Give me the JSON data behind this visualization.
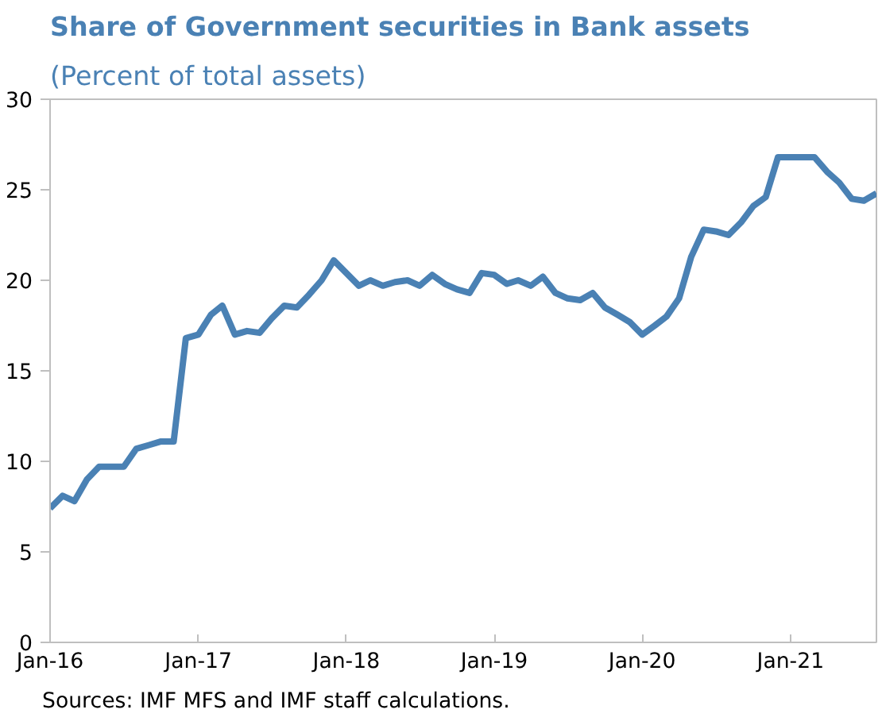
{
  "chart_data": {
    "type": "line",
    "title": "Share of Government securities in Bank assets",
    "subtitle": "(Percent of total assets)",
    "x": [
      "2016-01",
      "2016-02",
      "2016-03",
      "2016-04",
      "2016-05",
      "2016-06",
      "2016-07",
      "2016-08",
      "2016-09",
      "2016-10",
      "2016-11",
      "2016-12",
      "2017-01",
      "2017-02",
      "2017-03",
      "2017-04",
      "2017-05",
      "2017-06",
      "2017-07",
      "2017-08",
      "2017-09",
      "2017-10",
      "2017-11",
      "2017-12",
      "2018-01",
      "2018-02",
      "2018-03",
      "2018-04",
      "2018-05",
      "2018-06",
      "2018-07",
      "2018-08",
      "2018-09",
      "2018-10",
      "2018-11",
      "2018-12",
      "2019-01",
      "2019-02",
      "2019-03",
      "2019-04",
      "2019-05",
      "2019-06",
      "2019-07",
      "2019-08",
      "2019-09",
      "2019-10",
      "2019-11",
      "2019-12",
      "2020-01",
      "2020-02",
      "2020-03",
      "2020-04",
      "2020-05",
      "2020-06",
      "2020-07",
      "2020-08",
      "2020-09",
      "2020-10",
      "2020-11",
      "2020-12",
      "2021-01",
      "2021-02",
      "2021-03",
      "2021-04",
      "2021-05",
      "2021-06",
      "2021-07",
      "2021-08"
    ],
    "series": [
      {
        "color": "#4a81b4",
        "values": [
          7.4,
          8.1,
          7.8,
          9.0,
          9.7,
          9.7,
          9.7,
          10.7,
          10.9,
          11.1,
          11.1,
          16.8,
          17.0,
          18.1,
          18.6,
          17.0,
          17.2,
          17.1,
          17.9,
          18.6,
          18.5,
          19.2,
          20.0,
          21.1,
          20.4,
          19.7,
          20.0,
          19.7,
          19.9,
          20.0,
          19.7,
          20.3,
          19.8,
          19.5,
          19.3,
          20.4,
          20.3,
          19.8,
          20.0,
          19.7,
          20.2,
          19.3,
          19.0,
          18.9,
          19.3,
          18.5,
          18.1,
          17.7,
          17.0,
          17.5,
          18.0,
          19.0,
          21.3,
          22.8,
          22.7,
          22.5,
          23.2,
          24.1,
          24.6,
          26.8,
          26.8,
          26.8,
          26.8,
          26.0,
          25.4,
          24.5,
          24.4,
          24.8
        ]
      }
    ],
    "xlim": [
      "2016-01",
      "2021-08"
    ],
    "xticks": [
      {
        "value": "2016-01",
        "label": "Jan-16"
      },
      {
        "value": "2017-01",
        "label": "Jan-17"
      },
      {
        "value": "2018-01",
        "label": "Jan-18"
      },
      {
        "value": "2019-01",
        "label": "Jan-19"
      },
      {
        "value": "2020-01",
        "label": "Jan-20"
      },
      {
        "value": "2021-01",
        "label": "Jan-21"
      }
    ],
    "ylim": [
      0,
      30
    ],
    "yticks": [
      0,
      5,
      10,
      15,
      20,
      25,
      30
    ],
    "grid": false,
    "line_style": "solid",
    "marker": "none",
    "annotations": [
      "Sources: IMF MFS and IMF staff calculations."
    ]
  }
}
